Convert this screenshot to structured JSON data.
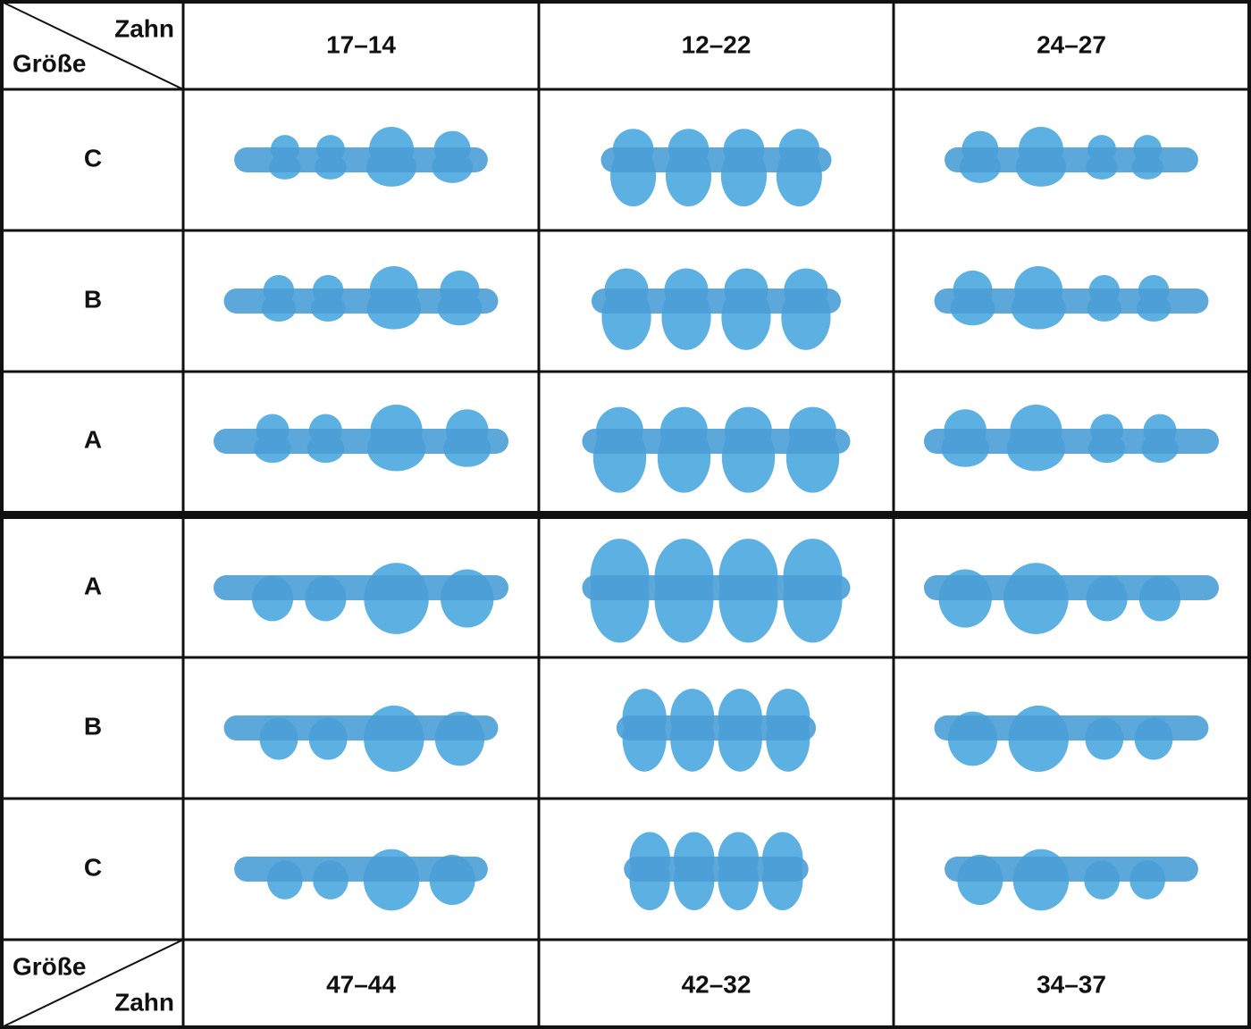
{
  "header": {
    "corner": {
      "top": "Zahn",
      "bottom": "Größe"
    },
    "columns": [
      "17–14",
      "12–22",
      "24–27"
    ]
  },
  "upper_rows": [
    "C",
    "B",
    "A"
  ],
  "lower_rows": [
    "A",
    "B",
    "C"
  ],
  "footer": {
    "corner": {
      "top": "Größe",
      "bottom": "Zahn"
    },
    "columns": [
      "47–44",
      "42–32",
      "34–37"
    ]
  }
}
